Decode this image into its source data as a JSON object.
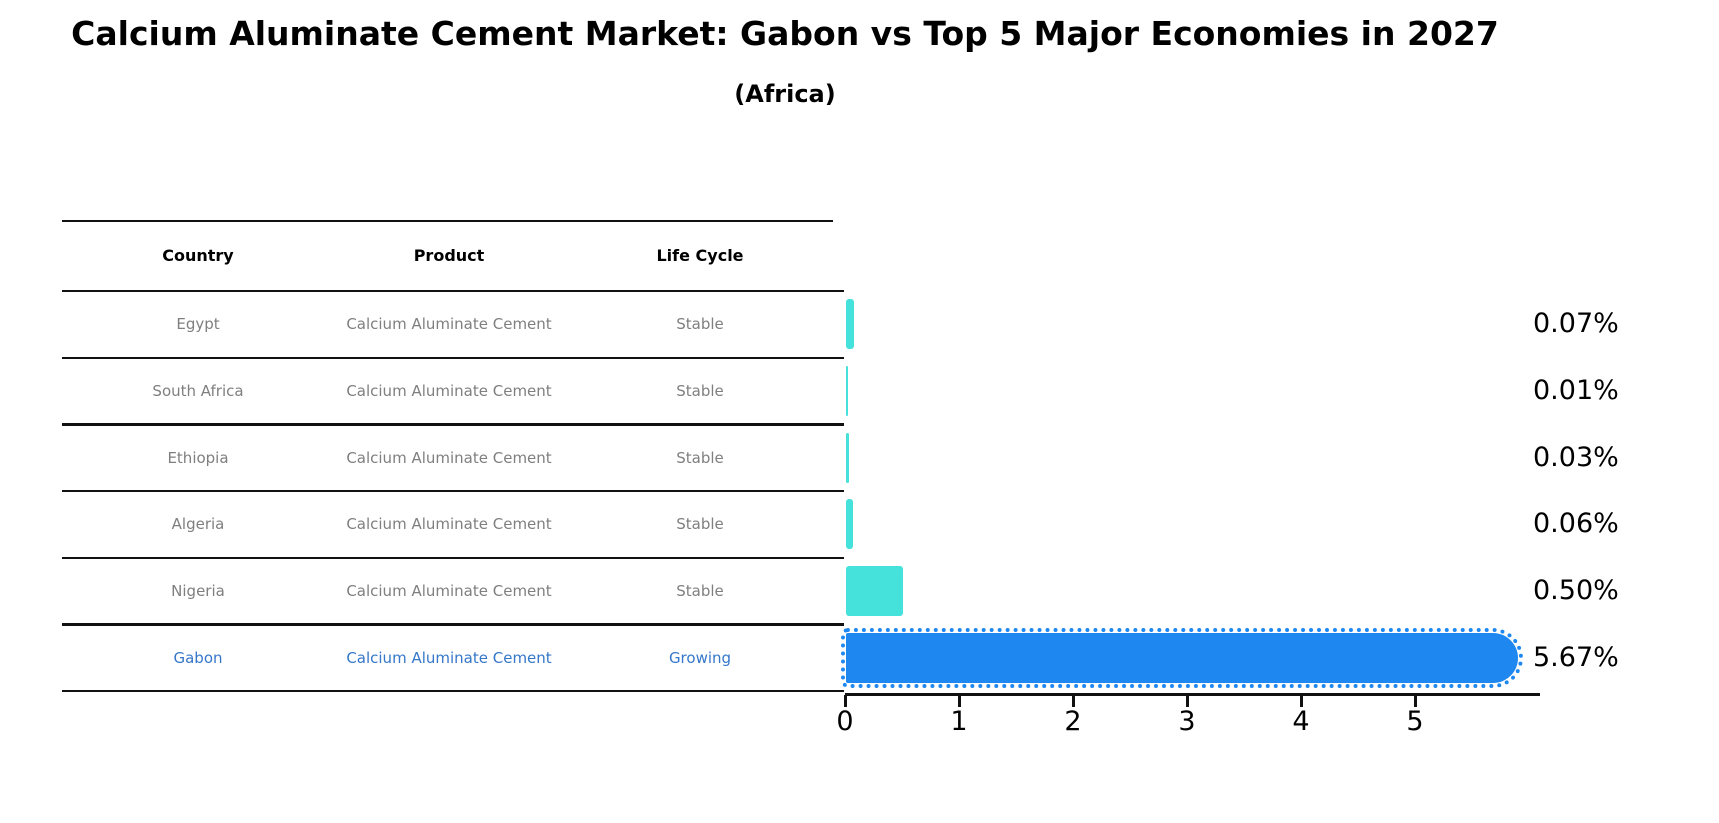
{
  "title": "Calcium Aluminate Cement Market: Gabon vs Top 5 Major Economies in 2027",
  "subtitle": "(Africa)",
  "table": {
    "headers": [
      "Country",
      "Product",
      "Life Cycle"
    ],
    "rows": [
      {
        "country": "Egypt",
        "product": "Calcium Aluminate Cement",
        "life_cycle": "Stable",
        "highlight": false
      },
      {
        "country": "South Africa",
        "product": "Calcium Aluminate Cement",
        "life_cycle": "Stable",
        "highlight": false
      },
      {
        "country": "Ethiopia",
        "product": "Calcium Aluminate Cement",
        "life_cycle": "Stable",
        "highlight": false
      },
      {
        "country": "Algeria",
        "product": "Calcium Aluminate Cement",
        "life_cycle": "Stable",
        "highlight": false
      },
      {
        "country": "Nigeria",
        "product": "Calcium Aluminate Cement",
        "life_cycle": "Stable",
        "highlight": false
      },
      {
        "country": "Gabon",
        "product": "Calcium Aluminate Cement",
        "life_cycle": "Growing",
        "highlight": true
      }
    ]
  },
  "chart_data": {
    "type": "bar",
    "orientation": "horizontal",
    "title": "Calcium Aluminate Cement Market: Gabon vs Top 5 Major Economies in 2027 (Africa)",
    "categories": [
      "Egypt",
      "South Africa",
      "Ethiopia",
      "Algeria",
      "Nigeria",
      "Gabon"
    ],
    "values": [
      0.07,
      0.01,
      0.03,
      0.06,
      0.5,
      5.67
    ],
    "value_labels": [
      "0.07%",
      "0.01%",
      "0.03%",
      "0.06%",
      "0.50%",
      "5.67%"
    ],
    "unit": "percent market share",
    "x_ticks": [
      "0",
      "1",
      "2",
      "3",
      "4",
      "5"
    ],
    "xlim": [
      0,
      6.1
    ],
    "grid": false,
    "legend": false,
    "highlight_index": 5
  },
  "colors": {
    "bar_default": "#45e2dc",
    "bar_highlight": "#1e88f0",
    "highlight_text": "#3577c9",
    "row_text": "#7f7f7f",
    "heading_text": "#000000",
    "axis": "#111111"
  }
}
